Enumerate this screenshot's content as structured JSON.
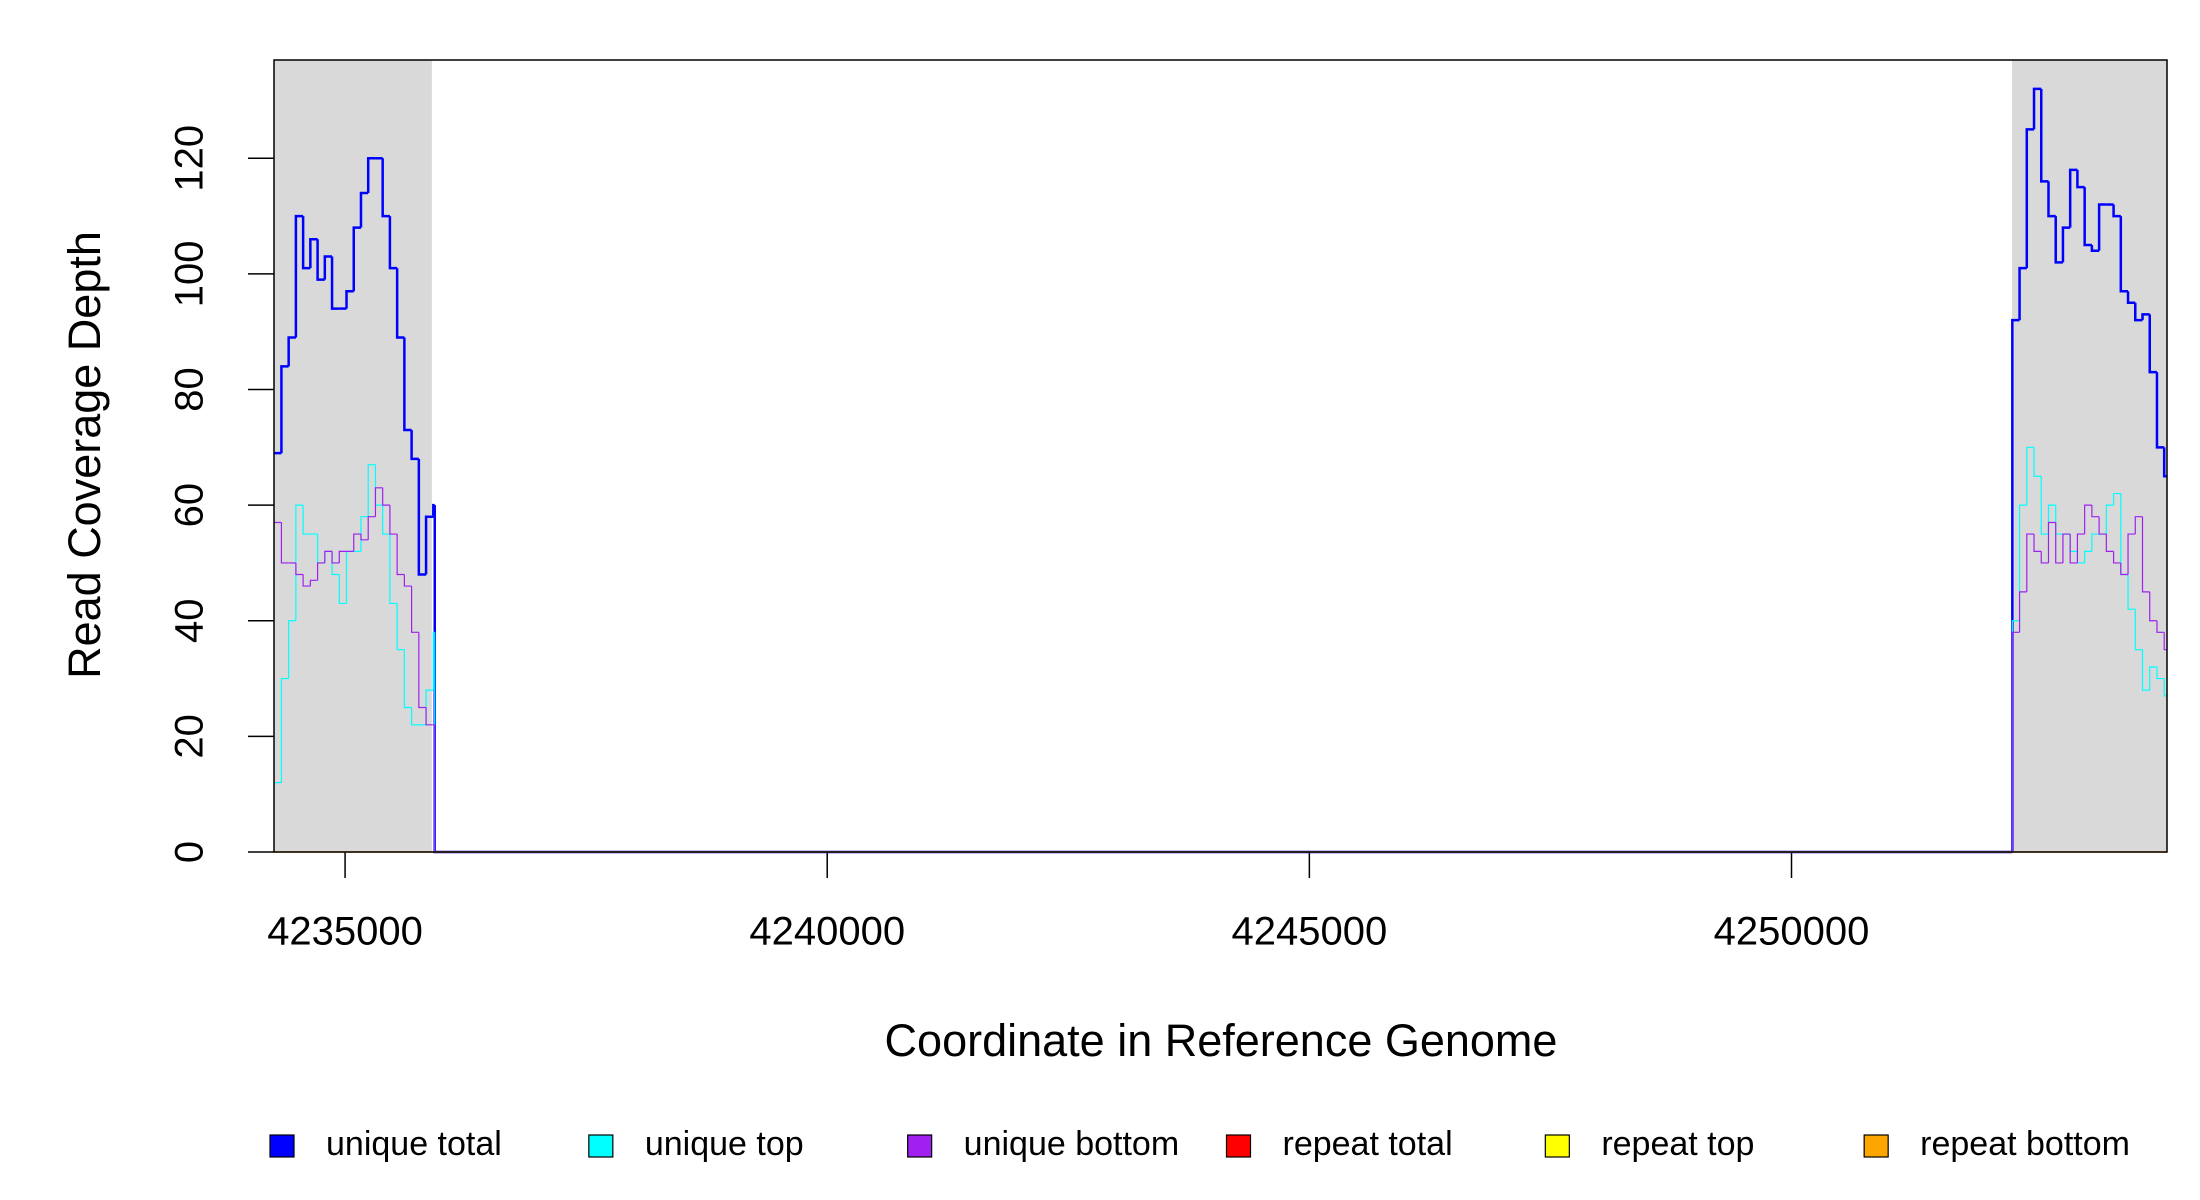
{
  "chart_data": {
    "type": "step-line",
    "x_label": "Coordinate in Reference Genome",
    "y_label": "Read Coverage Depth",
    "xlim": [
      4234263,
      4253894
    ],
    "ylim": [
      0,
      137
    ],
    "xticks": [
      4235000,
      4240000,
      4245000,
      4250000
    ],
    "yticks": [
      0,
      20,
      40,
      60,
      80,
      100,
      120
    ],
    "shaded_regions": [
      [
        4234263,
        4235900
      ],
      [
        4252286,
        4253894
      ]
    ],
    "shade_color": "#d9d9d9",
    "legend": "bottom",
    "x": [
      4234265,
      4234340,
      4234415,
      4234490,
      4234565,
      4234640,
      4234715,
      4234790,
      4234865,
      4234940,
      4235015,
      4235090,
      4235165,
      4235240,
      4235315,
      4235390,
      4235465,
      4235540,
      4235615,
      4235690,
      4235765,
      4235840,
      4235915,
      4235930,
      4252290,
      4252365,
      4252440,
      4252515,
      4252590,
      4252665,
      4252740,
      4252815,
      4252890,
      4252965,
      4253040,
      4253115,
      4253190,
      4253265,
      4253340,
      4253415,
      4253490,
      4253565,
      4253640,
      4253715,
      4253790,
      4253865
    ],
    "series": [
      {
        "name": "unique total",
        "color": "#0000ff",
        "linewidth": 2.5,
        "values": [
          69,
          84,
          89,
          110,
          101,
          106,
          99,
          103,
          94,
          94,
          97,
          108,
          114,
          120,
          120,
          110,
          101,
          89,
          73,
          68,
          48,
          58,
          60,
          0,
          92,
          101,
          125,
          132,
          116,
          110,
          102,
          108,
          118,
          115,
          105,
          104,
          112,
          112,
          110,
          97,
          95,
          92,
          93,
          83,
          70,
          65
        ]
      },
      {
        "name": "unique top",
        "color": "#00ffff",
        "linewidth": 1.2,
        "values": [
          12,
          30,
          40,
          60,
          55,
          55,
          50,
          52,
          48,
          43,
          52,
          52,
          58,
          67,
          60,
          55,
          43,
          35,
          25,
          22,
          22,
          28,
          38,
          0,
          40,
          60,
          70,
          65,
          55,
          60,
          55,
          55,
          52,
          50,
          52,
          55,
          55,
          60,
          62,
          48,
          42,
          35,
          28,
          32,
          30,
          27
        ]
      },
      {
        "name": "unique bottom",
        "color": "#a020f0",
        "linewidth": 1.2,
        "values": [
          57,
          50,
          50,
          48,
          46,
          47,
          50,
          52,
          50,
          52,
          52,
          55,
          54,
          58,
          63,
          60,
          55,
          48,
          46,
          38,
          25,
          22,
          22,
          0,
          38,
          45,
          55,
          52,
          50,
          57,
          50,
          55,
          50,
          55,
          60,
          58,
          55,
          52,
          50,
          48,
          55,
          58,
          45,
          40,
          38,
          35
        ]
      },
      {
        "name": "repeat total",
        "color": "#ff0000",
        "linewidth": 1.2,
        "values": [
          0,
          0,
          0,
          0,
          0,
          0,
          0,
          0,
          0,
          0,
          0,
          0,
          0,
          0,
          0,
          0,
          0,
          0,
          0,
          0,
          0,
          0,
          0,
          0,
          0,
          0,
          0,
          0,
          0,
          0,
          0,
          0,
          0,
          0,
          0,
          0,
          0,
          0,
          0,
          0,
          0,
          0,
          0,
          0,
          0,
          0
        ]
      },
      {
        "name": "repeat top",
        "color": "#ffff00",
        "linewidth": 1.2,
        "values": [
          0,
          0,
          0,
          0,
          0,
          0,
          0,
          0,
          0,
          0,
          0,
          0,
          0,
          0,
          0,
          0,
          0,
          0,
          0,
          0,
          0,
          0,
          0,
          0,
          0,
          0,
          0,
          0,
          0,
          0,
          0,
          0,
          0,
          0,
          0,
          0,
          0,
          0,
          0,
          0,
          0,
          0,
          0,
          0,
          0,
          0
        ]
      },
      {
        "name": "repeat bottom",
        "color": "#ffa500",
        "linewidth": 1.2,
        "values": [
          0,
          0,
          0,
          0,
          0,
          0,
          0,
          0,
          0,
          0,
          0,
          0,
          0,
          0,
          0,
          0,
          0,
          0,
          0,
          0,
          0,
          0,
          0,
          0,
          0,
          0,
          0,
          0,
          0,
          0,
          0,
          0,
          0,
          0,
          0,
          0,
          0,
          0,
          0,
          0,
          0,
          0,
          0,
          0,
          0,
          0
        ]
      }
    ]
  }
}
